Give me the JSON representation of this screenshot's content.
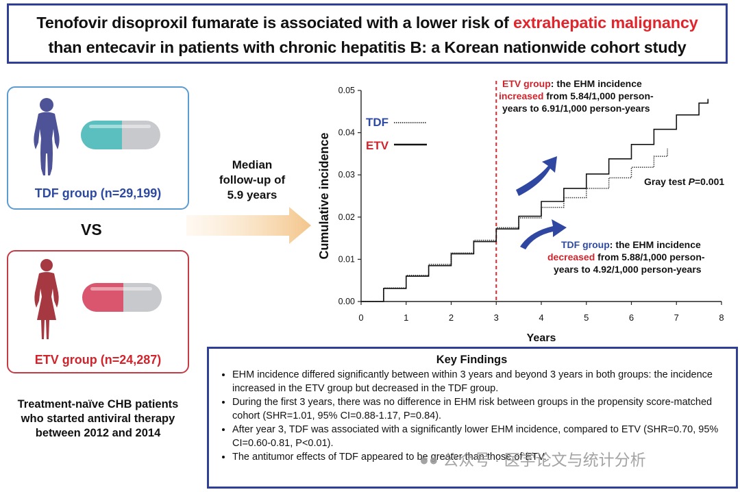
{
  "title": {
    "line1_pre": "Tenofovir disoproxil fumarate is associated with a lower risk of ",
    "line1_highlight": "extrahepatic malignancy",
    "line2": "than entecavir in patients with chronic hepatitis B: a Korean nationwide cohort study"
  },
  "groups": {
    "tdf_label": "TDF group (n=29,199)",
    "etv_label": "ETV group (n=24,287)",
    "vs": "VS"
  },
  "patients_text": [
    "Treatment-naïve CHB patients",
    "who started antiviral therapy",
    "between 2012 and 2014"
  ],
  "median_text": [
    "Median",
    "follow-up of",
    "5.9 years"
  ],
  "colors": {
    "tdf_blue": "#2e49a0",
    "etv_red": "#d0232b",
    "title_border": "#2e3f95",
    "teal": "#5bbfc0",
    "pink": "#d9566e"
  },
  "chart_data": {
    "type": "line",
    "xlabel": "Years",
    "ylabel": "Cumulative incidence",
    "xlim": [
      0,
      8
    ],
    "ylim": [
      0,
      0.05
    ],
    "x_ticks": [
      "0",
      "1",
      "2",
      "3",
      "4",
      "5",
      "6",
      "7",
      "8"
    ],
    "y_ticks": [
      "0.00",
      "0.01",
      "0.02",
      "0.03",
      "0.04",
      "0.05"
    ],
    "reference_line_x": 3,
    "series": [
      {
        "name": "TDF",
        "style": "dotted",
        "x": [
          0,
          0.5,
          1,
          1.5,
          2,
          2.5,
          3,
          3.5,
          4,
          4.5,
          5,
          5.5,
          6,
          6.5,
          6.8
        ],
        "y": [
          0,
          0.0032,
          0.0062,
          0.0088,
          0.0115,
          0.0145,
          0.0175,
          0.0198,
          0.0223,
          0.0246,
          0.0268,
          0.0293,
          0.0318,
          0.0344,
          0.0362
        ]
      },
      {
        "name": "ETV",
        "style": "solid",
        "x": [
          0,
          0.5,
          1,
          1.5,
          2,
          2.5,
          3,
          3.5,
          4,
          4.5,
          5,
          5.5,
          6,
          6.5,
          7,
          7.5,
          7.7
        ],
        "y": [
          0,
          0.0031,
          0.006,
          0.0085,
          0.0113,
          0.0142,
          0.0172,
          0.0202,
          0.0237,
          0.0268,
          0.0302,
          0.0338,
          0.0372,
          0.0408,
          0.0442,
          0.047,
          0.048
        ]
      }
    ],
    "legend": [
      "TDF",
      "ETV"
    ],
    "annotations": {
      "etv_group": "ETV group",
      "etv_line1_rest": ": the EHM incidence",
      "etv_increased": "increased",
      "etv_line2_rest": " from 5.84/1,000 person-",
      "etv_line3": "years to 6.91/1,000 person-years",
      "gray_test_pre": "Gray test ",
      "gray_test_p": "P",
      "gray_test_post": "=0.001",
      "tdf_group": "TDF group",
      "tdf_line1_rest": ": the EHM incidence",
      "tdf_decreased": "decreased",
      "tdf_line2_rest": " from 5.88/1,000 person-",
      "tdf_line3": "years to 4.92/1,000 person-years"
    }
  },
  "findings": {
    "heading": "Key Findings",
    "items": [
      "EHM incidence differed significantly between within 3 years and beyond 3 years in both groups: the incidence increased in the ETV group but decreased in the TDF group.",
      "During the first 3 years, there was no difference in EHM risk between groups in the propensity score-matched cohort (SHR=1.01, 95% CI=0.88-1.17, P=0.84).",
      "After year 3, TDF was associated with a significantly lower EHM incidence, compared to ETV (SHR=0.70, 95% CI=0.60-0.81, P<0.01).",
      "The antitumor effects of TDF appeared to be greater than those of ETV."
    ]
  },
  "watermark": "公众号 · 医学论文与统计分析"
}
